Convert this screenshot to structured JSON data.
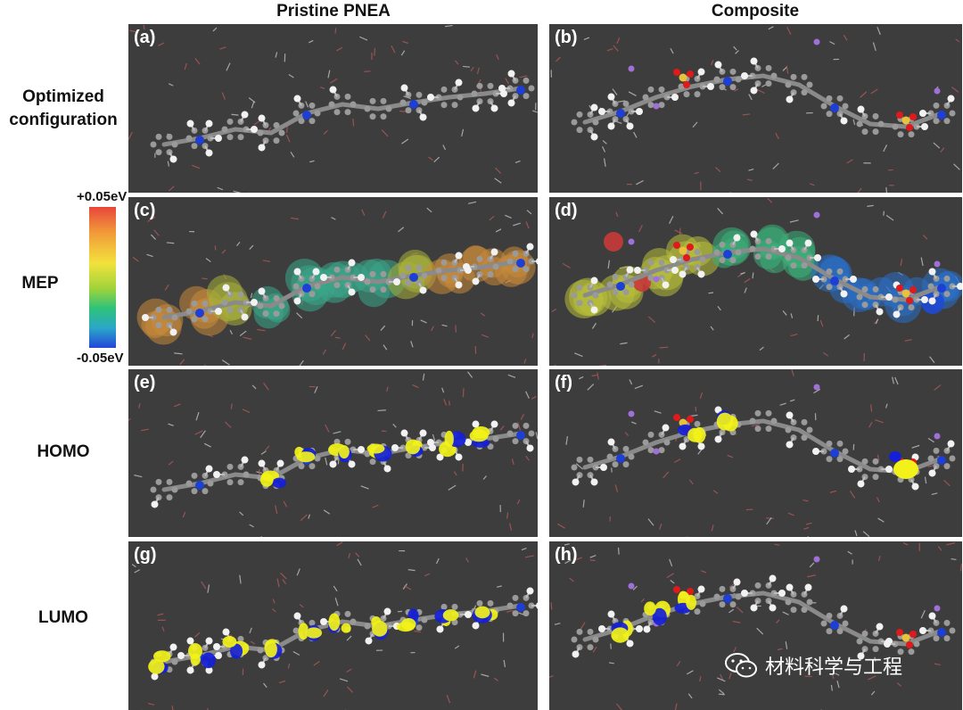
{
  "columns": {
    "left": "Pristine PNEA",
    "right": "Composite"
  },
  "rows": {
    "optimized_1": "Optimized",
    "optimized_2": "configuration",
    "mep": "MEP",
    "homo": "HOMO",
    "lumo": "LUMO"
  },
  "colorbar": {
    "max": "+0.05eV",
    "min": "-0.05eV"
  },
  "panels": {
    "a": "(a)",
    "b": "(b)",
    "c": "(c)",
    "d": "(d)",
    "e": "(e)",
    "f": "(f)",
    "g": "(g)",
    "h": "(h)"
  },
  "watermark": {
    "text": "材料科学与工程"
  },
  "colors": {
    "panel_bg": "#3d3d3d",
    "carbon": "#9a9a9a",
    "hydrogen": "#f2f2f2",
    "nitrogen": "#1e3fd6",
    "oxygen": "#e01a1a",
    "sulfur": "#e8c23a",
    "sodium": "#a070d8",
    "orbital_yellow": "#f2f21a",
    "orbital_blue": "#1420d8"
  }
}
